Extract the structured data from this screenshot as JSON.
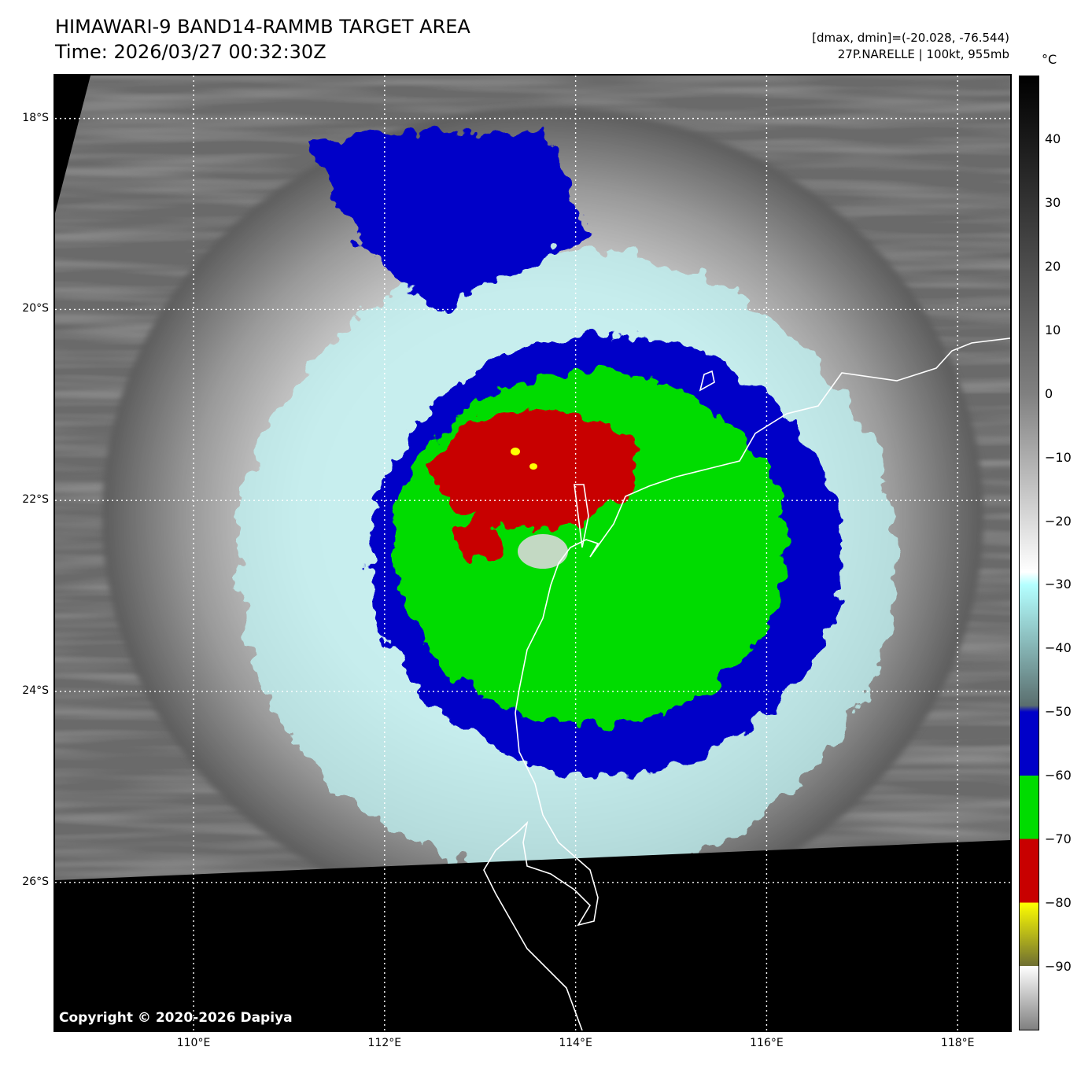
{
  "header": {
    "title_line1": "HIMAWARI-9 BAND14-RAMMB TARGET AREA",
    "title_line2": "Time: 2026/03/27 00:32:30Z",
    "dmax_dmin": "[dmax, dmin]=(-20.028, -76.544)",
    "storm_info": "27P.NARELLE | 100kt, 955mb"
  },
  "map": {
    "lat_labels": [
      "18°S",
      "20°S",
      "22°S",
      "24°S",
      "26°S"
    ],
    "lon_labels": [
      "110°E",
      "112°E",
      "114°E",
      "116°E",
      "118°E"
    ],
    "lat_values": [
      -18,
      -20,
      -22,
      -24,
      -26
    ],
    "lon_values": [
      110,
      112,
      114,
      116,
      118
    ],
    "lon_range": [
      108.55,
      118.55
    ],
    "lat_range": [
      -27.55,
      -17.55
    ],
    "storm_center": {
      "lat": -22.5,
      "lon": 113.6
    },
    "copyright": "Copyright © 2020-2026 Dapiya"
  },
  "colorbar": {
    "unit": "°C",
    "tick_labels": [
      "40",
      "30",
      "20",
      "10",
      "0",
      "−10",
      "−20",
      "−30",
      "−40",
      "−50",
      "−60",
      "−70",
      "−80",
      "−90"
    ],
    "tick_values": [
      40,
      30,
      20,
      10,
      0,
      -10,
      -20,
      -30,
      -40,
      -50,
      -60,
      -70,
      -80,
      -90
    ],
    "range": [
      -100,
      50
    ],
    "colors": {
      "warm_top": "#000000",
      "warm_mid": "#808080",
      "cold_white": "#ffffff",
      "cyan": "#b4ffff",
      "gray_teal": "#5a6e6e",
      "blue": "#0000c8",
      "green": "#00dc00",
      "red": "#c80000",
      "yellow": "#ffff00",
      "olive": "#6e6e32"
    }
  }
}
